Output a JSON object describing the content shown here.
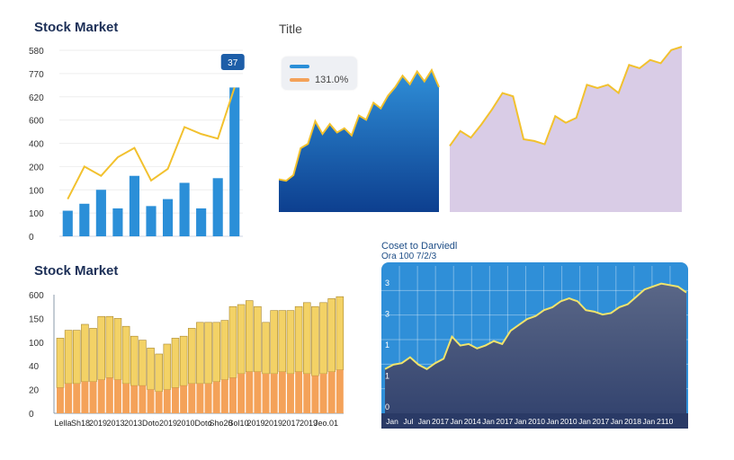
{
  "colors": {
    "bar_blue": "#2b8fd8",
    "line_yellow": "#f2c12e",
    "area_dark_blue": "#1d5ea8",
    "area_lavender": "#d9cce6",
    "stack_orange": "#f4a259",
    "stack_yellow": "#f3d266",
    "panel_blue": "#2f8fd8",
    "panel_navy": "#3f4f7a"
  },
  "chart1": {
    "title": "Stock Market",
    "callout": "37",
    "ylabels": [
      "0",
      "100",
      "100",
      "200",
      "400",
      "600",
      "620",
      "770",
      "580"
    ]
  },
  "chart2": {
    "title": "Title",
    "legend": [
      "",
      "131.0%"
    ]
  },
  "chart4": {
    "title": "Stock Market",
    "ylabels": [
      "0",
      "20",
      "40",
      "100",
      "150",
      "600"
    ],
    "xlabels": [
      "Lella",
      "Sh18",
      "2019",
      "2013",
      "2013",
      "Doto",
      "2019",
      "2010",
      "Doto",
      "Sho20",
      "Sol10",
      "2019",
      "2019",
      "2017",
      "2019",
      "Jeo.01"
    ]
  },
  "chart5": {
    "title": "Coset to Darviedl",
    "subtitle": "Ora 100 7/2/3",
    "ylabels": [
      "0",
      "1",
      "1",
      "3",
      "3"
    ],
    "xlabels": [
      "Jan",
      "Jul",
      "Jan",
      "2017",
      "Jan",
      "2014",
      "Jan",
      "2017",
      "Jan",
      "2010",
      "Jan",
      "2010",
      "Jan",
      "2017",
      "Jan",
      "2018",
      "Jan",
      "2110"
    ]
  },
  "chart_data": [
    {
      "type": "bar",
      "title": "Stock Market",
      "ylim": [
        0,
        800
      ],
      "series": [
        {
          "values": [
            110,
            140,
            200,
            120,
            260,
            130,
            160,
            230,
            120,
            250,
            640
          ]
        },
        {
          "values": [
            160,
            300,
            260,
            340,
            380,
            240,
            290,
            470,
            440,
            420,
            640
          ]
        }
      ],
      "annotations": [
        "37"
      ]
    },
    {
      "type": "area",
      "title": "Title",
      "ylim": [
        0,
        100
      ],
      "series": [
        {
          "name": "131.0%",
          "values": [
            23,
            22,
            26,
            45,
            48,
            64,
            55,
            62,
            56,
            59,
            54,
            68,
            65,
            77,
            73,
            82,
            88,
            96,
            90,
            99,
            92,
            100,
            88
          ]
        }
      ]
    },
    {
      "type": "area",
      "ylim": [
        0,
        100
      ],
      "series": [
        {
          "values": [
            40,
            49,
            45,
            53,
            62,
            72,
            70,
            44,
            43,
            41,
            58,
            54,
            57,
            77,
            75,
            77,
            72,
            89,
            87,
            92,
            90,
            98,
            100
          ]
        }
      ]
    },
    {
      "type": "bar",
      "title": "Stock Market",
      "ylim": [
        0,
        600
      ],
      "series": [
        {
          "values": [
            130,
            150,
            150,
            160,
            160,
            170,
            180,
            170,
            150,
            140,
            140,
            120,
            110,
            120,
            130,
            140,
            150,
            150,
            150,
            160,
            170,
            180,
            200,
            210,
            210,
            200,
            200,
            210,
            200,
            210,
            200,
            190,
            200,
            210,
            220
          ]
        },
        {
          "values": [
            380,
            420,
            420,
            450,
            430,
            490,
            490,
            480,
            440,
            390,
            370,
            330,
            300,
            350,
            380,
            390,
            430,
            460,
            460,
            460,
            470,
            540,
            550,
            570,
            540,
            460,
            520,
            520,
            520,
            540,
            560,
            540,
            560,
            580,
            590
          ]
        }
      ]
    },
    {
      "type": "area",
      "title": "Coset to Darviedl",
      "ylim": [
        0,
        100
      ],
      "series": [
        {
          "values": [
            30,
            33,
            34,
            38,
            33,
            30,
            34,
            37,
            52,
            46,
            47,
            44,
            46,
            49,
            47,
            56,
            60,
            64,
            66,
            70,
            72,
            76,
            78,
            76,
            70,
            69,
            67,
            68,
            72,
            74,
            79,
            84,
            86,
            88,
            87,
            86,
            82
          ]
        }
      ]
    }
  ]
}
